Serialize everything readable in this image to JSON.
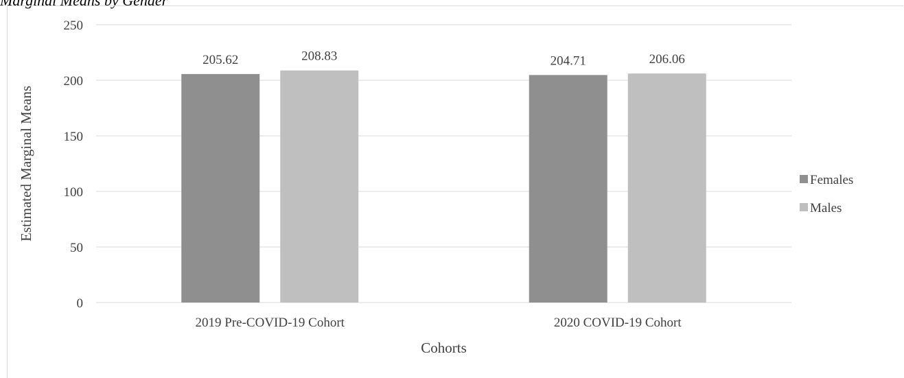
{
  "caption": "Marginal Means by Gender",
  "colors": {
    "Females": "#8f8f8f",
    "Males": "#bfbfbf",
    "grid": "#d9d9d9",
    "text": "#404040"
  },
  "chart_data": {
    "type": "bar",
    "categories": [
      "2019 Pre-COVID-19 Cohort",
      "2020 COVID-19 Cohort"
    ],
    "series": [
      {
        "name": "Females",
        "values": [
          205.62,
          204.71
        ]
      },
      {
        "name": "Males",
        "values": [
          208.83,
          206.06
        ]
      }
    ],
    "value_labels": [
      [
        "205.62",
        "204.71"
      ],
      [
        "208.83",
        "206.06"
      ]
    ],
    "xlabel": "Cohorts",
    "ylabel": "Estimated Marginal Means",
    "ylim": [
      0,
      250
    ],
    "yticks": [
      0,
      50,
      100,
      150,
      200,
      250
    ],
    "grid": true,
    "legend": "right"
  }
}
